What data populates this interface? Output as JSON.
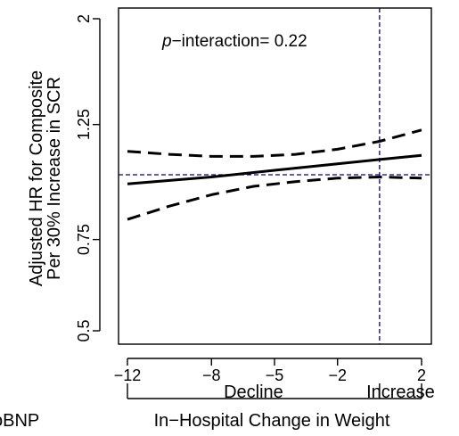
{
  "chart_data": {
    "type": "line",
    "ylabel_line1": "Adjusted HR for Composite",
    "ylabel_line2": "Per 30% Increase in SCR",
    "xlabel": "In−Hospital Change in Weight",
    "annotation": {
      "prefix": "p",
      "text": "−interaction= 0.22"
    },
    "xlim": [
      -12,
      2
    ],
    "ylim": [
      0.5,
      2
    ],
    "y_scale": "log",
    "x_ticks": [
      -12,
      -8,
      -5,
      -2,
      2
    ],
    "x_tick_labels": [
      "−12",
      "−8",
      "−5",
      "−2",
      "2"
    ],
    "y_ticks": [
      0.5,
      0.75,
      1.25,
      2
    ],
    "y_tick_labels": [
      "0.5",
      "0.75",
      "1.25",
      "2"
    ],
    "reference_lines": {
      "y": 1.0,
      "x": 0,
      "color": "#00008b",
      "style": "dashed"
    },
    "brackets": [
      {
        "label": "Decline",
        "from": -12,
        "to": 0
      },
      {
        "label": "Increase",
        "from": 0,
        "to": 2
      }
    ],
    "cropped_left_text": "oBNP",
    "series": [
      {
        "role": "estimate",
        "style": "solid",
        "x": [
          -12,
          -8,
          -5,
          -2,
          0,
          2
        ],
        "y": [
          0.96,
          0.99,
          1.02,
          1.05,
          1.07,
          1.09
        ]
      },
      {
        "role": "upper-ci",
        "style": "dashed",
        "x": [
          -12,
          -10,
          -8,
          -6,
          -4,
          -2,
          0,
          2
        ],
        "y": [
          1.11,
          1.095,
          1.085,
          1.085,
          1.095,
          1.12,
          1.16,
          1.22
        ]
      },
      {
        "role": "lower-ci",
        "style": "dashed",
        "x": [
          -12,
          -10,
          -8,
          -6,
          -4,
          -2,
          0,
          2
        ],
        "y": [
          0.82,
          0.87,
          0.915,
          0.95,
          0.97,
          0.985,
          0.99,
          0.985
        ]
      }
    ]
  }
}
